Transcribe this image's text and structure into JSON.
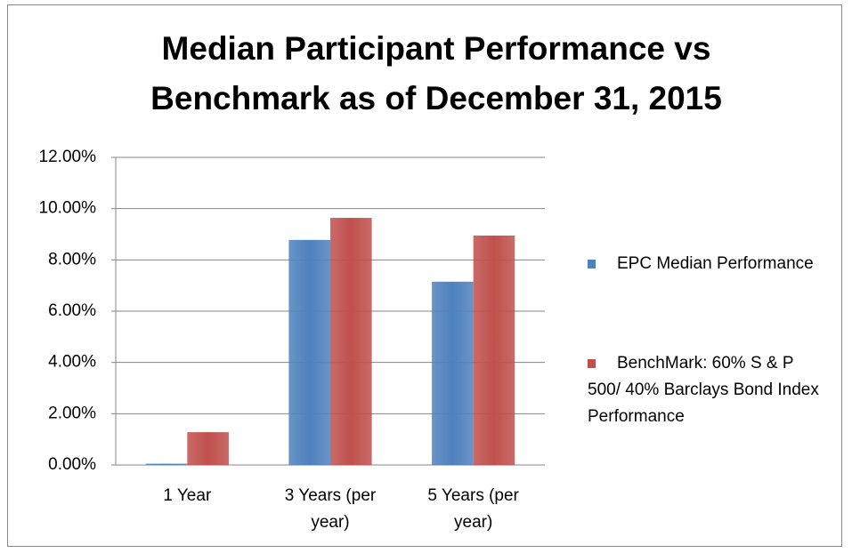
{
  "chart_data": {
    "type": "bar",
    "title": [
      "Median Participant Performance vs",
      "Benchmark as of December 31, 2015"
    ],
    "categories": [
      "1 Year",
      "3 Years (per year)",
      "5 Years (per year)"
    ],
    "series": [
      {
        "name": "EPC Median Performance",
        "color": "#4f81bd",
        "values": [
          0.05,
          8.78,
          7.15
        ]
      },
      {
        "name": "BenchMark: 60% S & P 500/ 40% Barclays Bond Index Performance",
        "color": "#c0504d",
        "values": [
          1.28,
          9.64,
          8.95
        ]
      }
    ],
    "ylim": [
      0,
      12
    ],
    "yticks": [
      {
        "value": 0,
        "label": "0.00%"
      },
      {
        "value": 2,
        "label": "2.00%"
      },
      {
        "value": 4,
        "label": "4.00%"
      },
      {
        "value": 6,
        "label": "6.00%"
      },
      {
        "value": 8,
        "label": "8.00%"
      },
      {
        "value": 10,
        "label": "10.00%"
      },
      {
        "value": 12,
        "label": "12.00%"
      }
    ],
    "grid": true,
    "legend": "right"
  }
}
